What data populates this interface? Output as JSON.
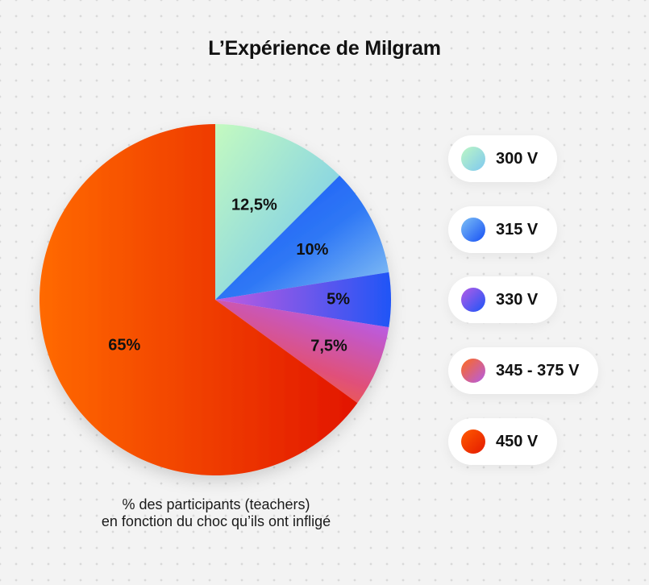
{
  "title": "L’Expérience de Milgram",
  "caption": {
    "line1": "% des participants (teachers)",
    "line2": "en fonction du choc qu’ils ont infligé"
  },
  "legend": [
    {
      "label": "300 V",
      "colors": [
        "#bdf7c4",
        "#7ec8f0"
      ]
    },
    {
      "label": "315 V",
      "colors": [
        "#7dc0f5",
        "#1650f5"
      ]
    },
    {
      "label": "330 V",
      "colors": [
        "#b55ce6",
        "#1b55f8"
      ]
    },
    {
      "label": "345 - 375 V",
      "colors": [
        "#ff6a1a",
        "#b35ce8"
      ]
    },
    {
      "label": "450 V",
      "colors": [
        "#ff5a00",
        "#e41a00"
      ]
    }
  ],
  "chart_data": {
    "type": "pie",
    "title": "L’Expérience de Milgram",
    "categories": [
      "300 V",
      "315 V",
      "330 V",
      "345 - 375 V",
      "450 V"
    ],
    "values": [
      12.5,
      10,
      5,
      7.5,
      65
    ],
    "labels": [
      "12,5%",
      "10%",
      "5%",
      "7,5%",
      "65%"
    ],
    "unit": "%",
    "legend": "right"
  }
}
